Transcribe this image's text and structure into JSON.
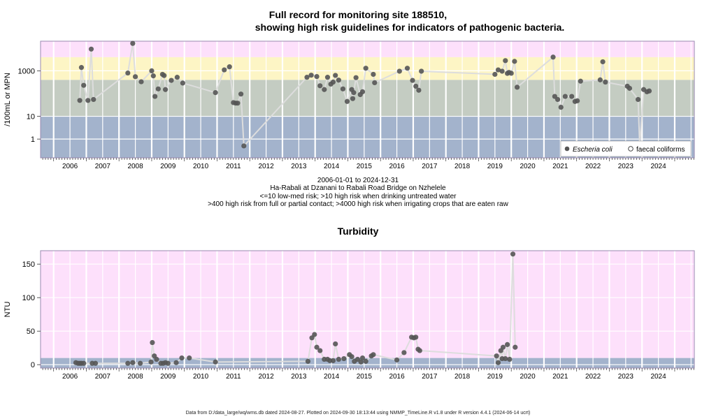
{
  "header": {
    "title_line1": "Full record for monitoring site 188510,",
    "title_line2": "showing high risk guidelines for indicators of pathogenic bacteria."
  },
  "subtitle": {
    "date_range": "2006-01-01 to 2024-12-31",
    "site_name": "Ha-Rabali at Dzanani to Rabali Road Bridge on Nzhelele",
    "guideline_line1": "<=10 low-med risk; >10 high risk when drinking untreated water",
    "guideline_line2": ">400 high risk from full or partial contact; >4000 high risk when irrigating crops that are eaten raw"
  },
  "footer": {
    "text": "Data from D:/data_large/wq/wms.db dated 2024-08-27. Plotted on 2024-09-30 18:13:44 using NMMP_TimeLine.R v1.8 under R version 4.4.1 (2024-06-14 ucrt)"
  },
  "colors": {
    "band_blue": "#a3b3cc",
    "band_green": "#c4ccc2",
    "band_yellow": "#fdf5c5",
    "band_pink": "#fde0fb",
    "point": "#555555",
    "line": "#dddddd",
    "frame": "#9a8ab0"
  },
  "chart_data": [
    {
      "type": "scatter",
      "title": "Full record for monitoring site 188510, showing high risk guidelines for indicators of pathogenic bacteria.",
      "ylabel": "/100mL or MPN",
      "y_scale": "log",
      "ylim": [
        0.15,
        20000
      ],
      "xlim": [
        2005.6,
        2025.6
      ],
      "x_ticks": [
        "2006",
        "2007",
        "2008",
        "2009",
        "2010",
        "2011",
        "2012",
        "2013",
        "2014",
        "2015",
        "2016",
        "2017",
        "2018",
        "2019",
        "2020",
        "2021",
        "2022",
        "2023",
        "2024"
      ],
      "y_ticks": [
        "1",
        "10",
        "1000"
      ],
      "bands": [
        {
          "from": 0.15,
          "to": 10,
          "color": "band_blue"
        },
        {
          "from": 10,
          "to": 400,
          "color": "band_green"
        },
        {
          "from": 400,
          "to": 4000,
          "color": "band_yellow"
        },
        {
          "from": 4000,
          "to": 20000,
          "color": "band_pink"
        }
      ],
      "legend": {
        "position": "bottom-right",
        "entries": [
          {
            "label": "Escheria coli",
            "marker": "filled-circle"
          },
          {
            "label": "faecal coliforms",
            "marker": "open-circle"
          }
        ]
      },
      "series": [
        {
          "name": "Escheria coli",
          "points": [
            [
              2006.8,
              50
            ],
            [
              2006.85,
              1400
            ],
            [
              2006.92,
              230
            ],
            [
              2007.05,
              50
            ],
            [
              2007.15,
              9000
            ],
            [
              2007.22,
              55
            ],
            [
              2008.27,
              800
            ],
            [
              2008.42,
              16000
            ],
            [
              2008.5,
              550
            ],
            [
              2008.68,
              330
            ],
            [
              2009.0,
              1000
            ],
            [
              2009.05,
              600
            ],
            [
              2009.1,
              75
            ],
            [
              2009.2,
              160
            ],
            [
              2009.33,
              700
            ],
            [
              2009.38,
              620
            ],
            [
              2009.42,
              150
            ],
            [
              2009.6,
              380
            ],
            [
              2009.78,
              520
            ],
            [
              2009.95,
              290
            ],
            [
              2010.95,
              110
            ],
            [
              2011.22,
              1100
            ],
            [
              2011.38,
              1500
            ],
            [
              2011.5,
              40
            ],
            [
              2011.57,
              38
            ],
            [
              2011.63,
              38
            ],
            [
              2011.73,
              95
            ],
            [
              2011.82,
              0.5
            ],
            [
              2013.75,
              520
            ],
            [
              2013.88,
              640
            ],
            [
              2014.05,
              560
            ],
            [
              2014.15,
              220
            ],
            [
              2014.28,
              150
            ],
            [
              2014.38,
              520
            ],
            [
              2014.48,
              260
            ],
            [
              2014.55,
              320
            ],
            [
              2014.62,
              630
            ],
            [
              2014.72,
              390
            ],
            [
              2014.85,
              160
            ],
            [
              2014.98,
              45
            ],
            [
              2015.12,
              150
            ],
            [
              2015.15,
              60
            ],
            [
              2015.18,
              110
            ],
            [
              2015.25,
              500
            ],
            [
              2015.38,
              90
            ],
            [
              2015.45,
              120
            ],
            [
              2015.55,
              1300
            ],
            [
              2015.78,
              700
            ],
            [
              2015.82,
              300
            ],
            [
              2016.58,
              960
            ],
            [
              2016.82,
              1300
            ],
            [
              2016.98,
              380
            ],
            [
              2017.08,
              210
            ],
            [
              2017.17,
              140
            ],
            [
              2017.25,
              960
            ],
            [
              2019.5,
              700
            ],
            [
              2019.6,
              1100
            ],
            [
              2019.72,
              960
            ],
            [
              2019.82,
              2800
            ],
            [
              2019.88,
              770
            ],
            [
              2019.93,
              850
            ],
            [
              2020.0,
              780
            ],
            [
              2020.1,
              2600
            ],
            [
              2020.18,
              190
            ],
            [
              2021.28,
              4000
            ],
            [
              2021.33,
              75
            ],
            [
              2021.42,
              55
            ],
            [
              2021.52,
              25
            ],
            [
              2021.65,
              75
            ],
            [
              2021.85,
              75
            ],
            [
              2021.95,
              45
            ],
            [
              2022.02,
              48
            ],
            [
              2022.12,
              350
            ],
            [
              2022.72,
              400
            ],
            [
              2022.8,
              2500
            ],
            [
              2022.88,
              320
            ],
            [
              2023.55,
              210
            ],
            [
              2023.62,
              170
            ],
            [
              2023.88,
              55
            ],
            [
              2023.93,
              0.5
            ],
            [
              2024.05,
              150
            ],
            [
              2024.15,
              120
            ],
            [
              2024.22,
              130
            ]
          ]
        }
      ]
    },
    {
      "type": "scatter",
      "title": "Turbidity",
      "ylabel": "NTU",
      "ylim": [
        -5,
        170
      ],
      "xlim": [
        2005.6,
        2025.6
      ],
      "x_ticks": [
        "2006",
        "2007",
        "2008",
        "2009",
        "2010",
        "2011",
        "2012",
        "2013",
        "2014",
        "2015",
        "2016",
        "2017",
        "2018",
        "2019",
        "2020",
        "2021",
        "2022",
        "2023",
        "2024"
      ],
      "y_ticks": [
        "0",
        "50",
        "100",
        "150"
      ],
      "bands": [
        {
          "from": -5,
          "to": 10,
          "color": "band_blue"
        },
        {
          "from": 10,
          "to": 170,
          "color": "band_pink"
        }
      ],
      "series": [
        {
          "name": "",
          "points": [
            [
              2006.68,
              3
            ],
            [
              2006.75,
              2
            ],
            [
              2006.8,
              2
            ],
            [
              2006.85,
              2
            ],
            [
              2006.92,
              2
            ],
            [
              2007.18,
              2
            ],
            [
              2007.28,
              2
            ],
            [
              2008.27,
              2
            ],
            [
              2008.42,
              3
            ],
            [
              2008.65,
              2
            ],
            [
              2008.98,
              4
            ],
            [
              2009.02,
              33
            ],
            [
              2009.08,
              13
            ],
            [
              2009.15,
              8
            ],
            [
              2009.28,
              2
            ],
            [
              2009.35,
              2
            ],
            [
              2009.42,
              3
            ],
            [
              2009.5,
              2
            ],
            [
              2009.75,
              3
            ],
            [
              2009.92,
              10
            ],
            [
              2010.15,
              10
            ],
            [
              2010.95,
              4
            ],
            [
              2013.78,
              5
            ],
            [
              2013.9,
              40
            ],
            [
              2013.98,
              45
            ],
            [
              2014.05,
              26
            ],
            [
              2014.15,
              21
            ],
            [
              2014.28,
              8
            ],
            [
              2014.38,
              8
            ],
            [
              2014.45,
              6
            ],
            [
              2014.55,
              6
            ],
            [
              2014.62,
              31
            ],
            [
              2014.72,
              8
            ],
            [
              2014.88,
              9
            ],
            [
              2015.05,
              15
            ],
            [
              2015.12,
              12
            ],
            [
              2015.2,
              5
            ],
            [
              2015.3,
              8
            ],
            [
              2015.4,
              4
            ],
            [
              2015.45,
              10
            ],
            [
              2015.55,
              5
            ],
            [
              2015.72,
              13
            ],
            [
              2015.78,
              15
            ],
            [
              2016.5,
              7
            ],
            [
              2016.72,
              18
            ],
            [
              2016.95,
              41
            ],
            [
              2017.02,
              40
            ],
            [
              2017.08,
              41
            ],
            [
              2017.15,
              23
            ],
            [
              2017.2,
              21
            ],
            [
              2019.55,
              13
            ],
            [
              2019.6,
              3
            ],
            [
              2019.68,
              21
            ],
            [
              2019.72,
              9
            ],
            [
              2019.75,
              26
            ],
            [
              2019.82,
              9
            ],
            [
              2019.88,
              30
            ],
            [
              2019.95,
              8
            ],
            [
              2020.05,
              165
            ],
            [
              2020.12,
              26
            ]
          ]
        }
      ]
    }
  ]
}
